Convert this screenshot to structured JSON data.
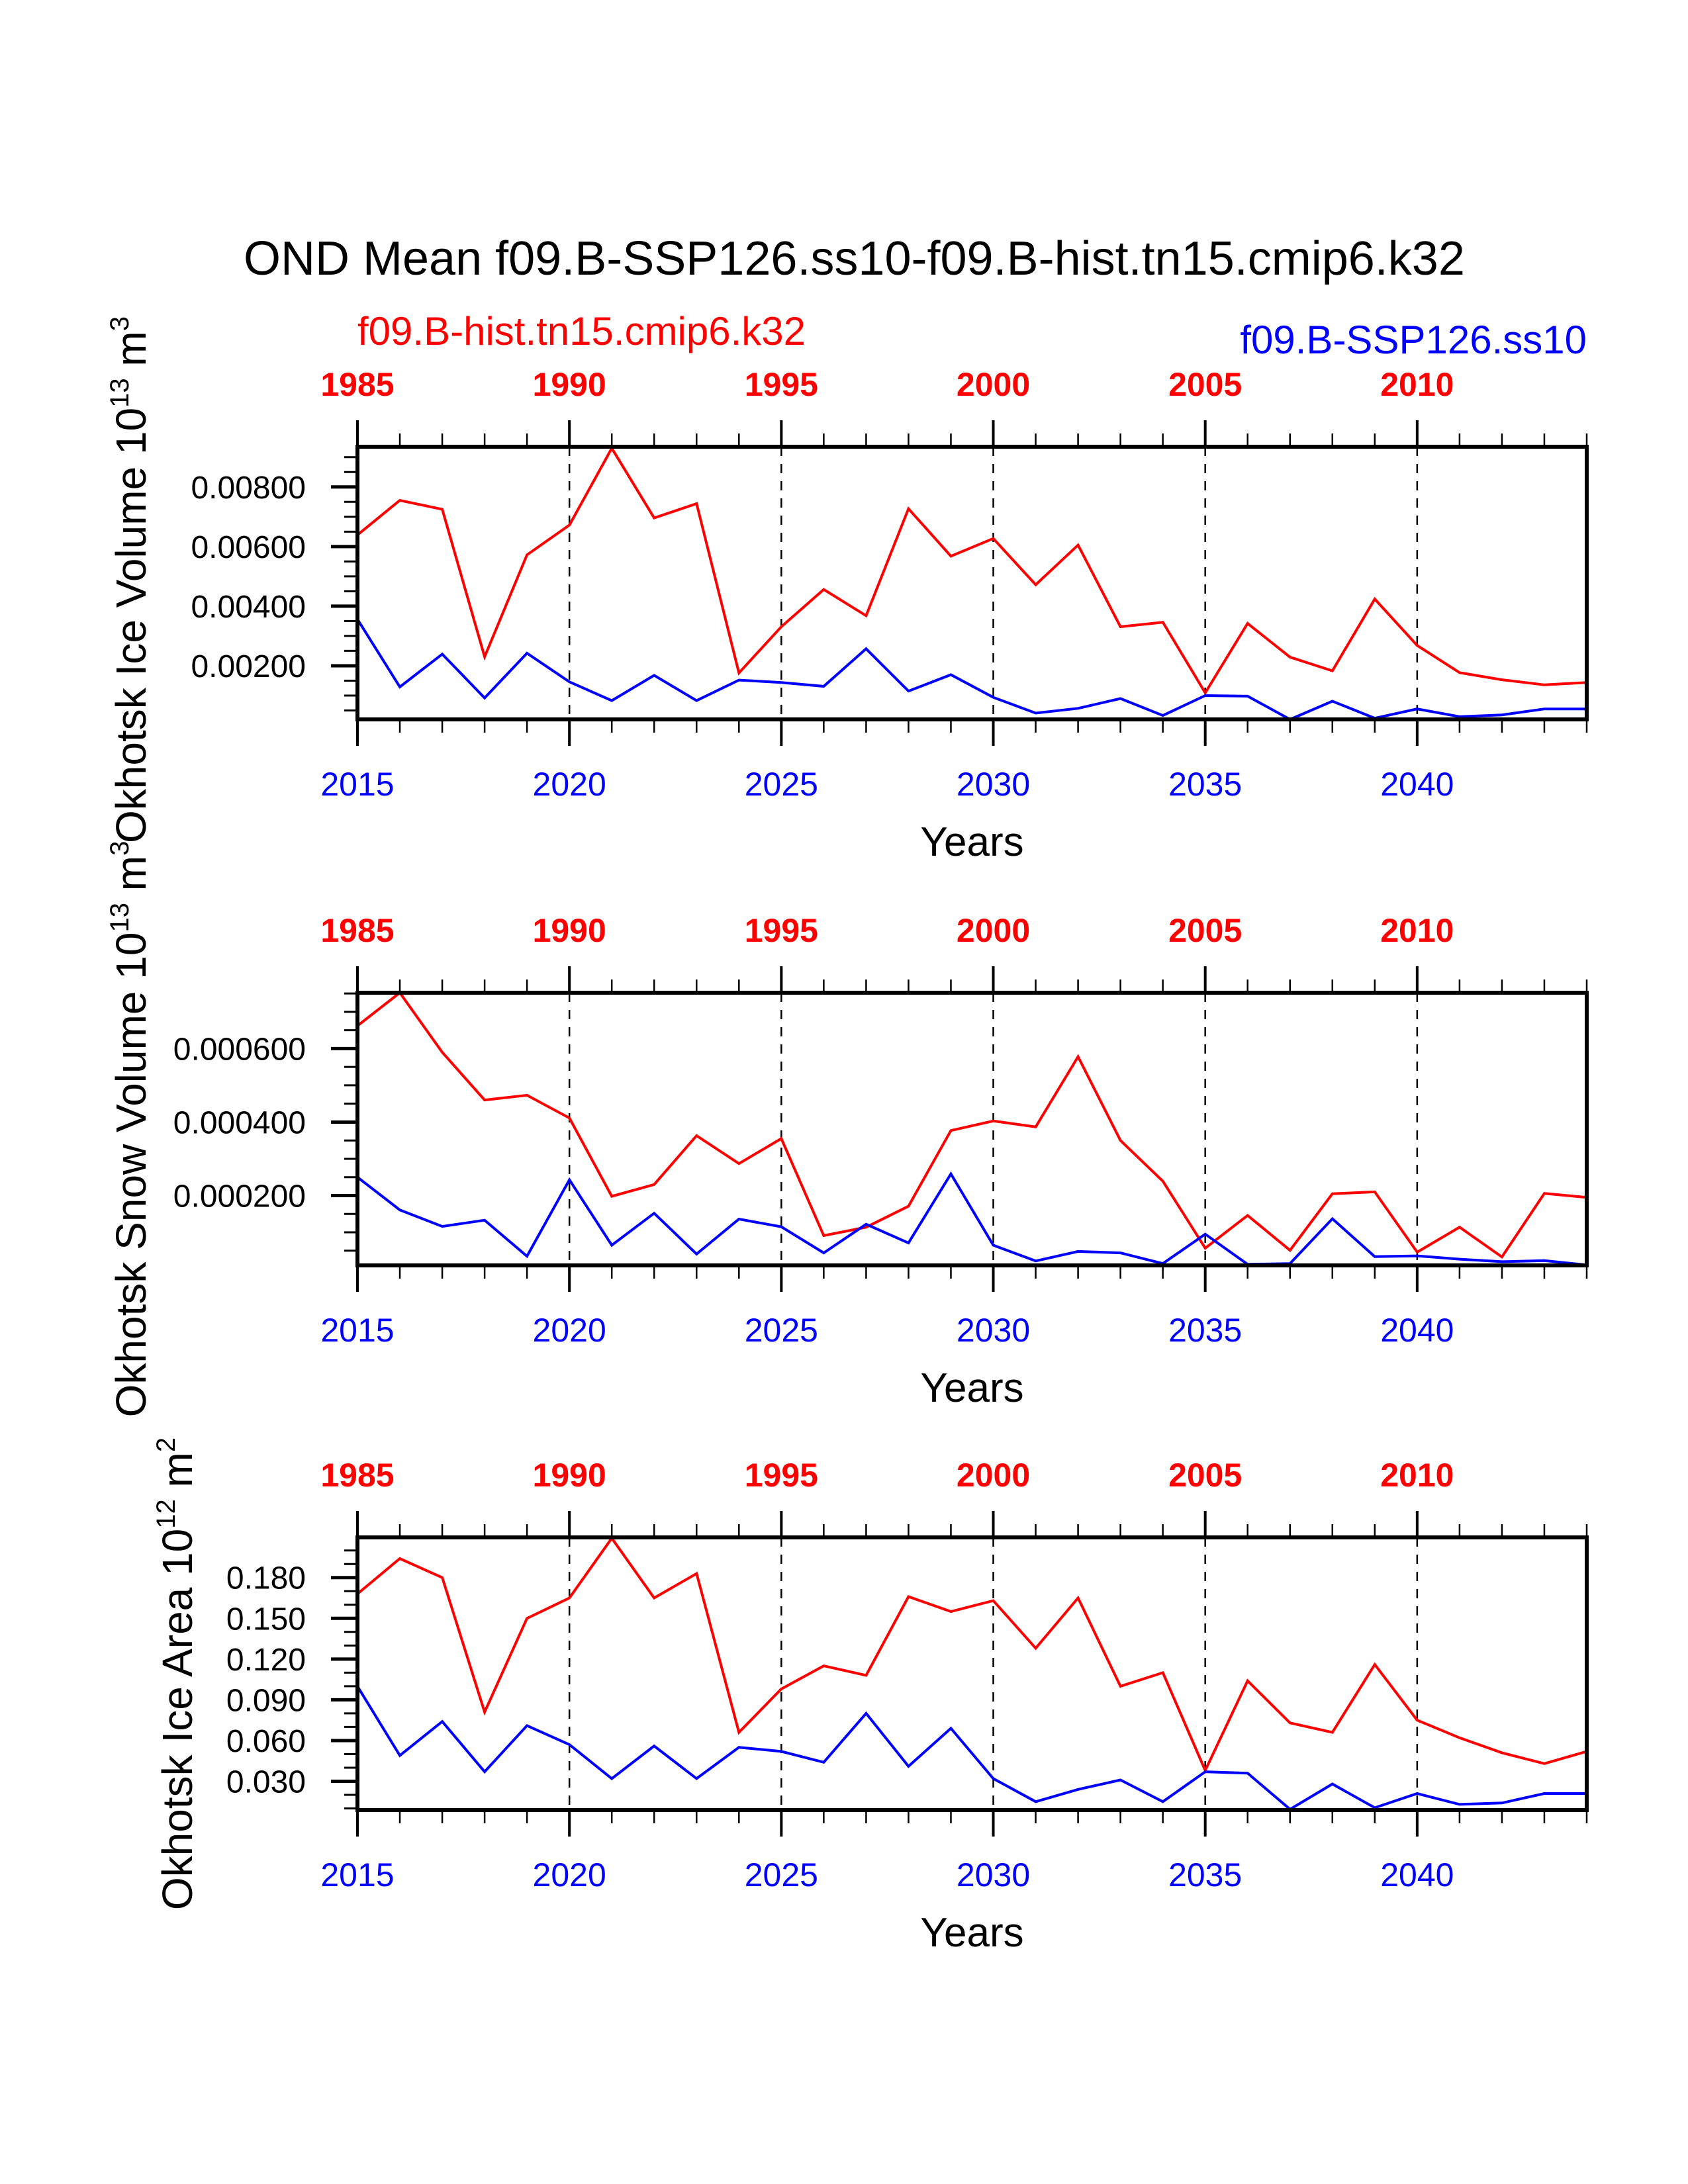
{
  "chart_data": {
    "type": "line",
    "title": "OND Mean f09.B-SSP126.ss10-f09.B-hist.tn15.cmip6.k32",
    "legend_left": {
      "text": "f09.B-hist.tn15.cmip6.k32",
      "color": "#ff0000",
      "placement": "top-left"
    },
    "legend_right": {
      "text": "f09.B-SSP126.ss10",
      "color": "#0000ff",
      "placement": "top-right"
    },
    "x_bottom": {
      "label": "Years",
      "range": [
        2015,
        2044
      ],
      "ticks": [
        2015,
        2020,
        2025,
        2030,
        2035,
        2040
      ],
      "tick_labels": [
        "2015",
        "2020",
        "2025",
        "2030",
        "2035",
        "2040"
      ],
      "color": "#0000ff"
    },
    "x_top": {
      "range": [
        1985,
        2014
      ],
      "ticks": [
        1985,
        1990,
        1995,
        2000,
        2005,
        2010
      ],
      "tick_labels": [
        "1985",
        "1990",
        "1995",
        "2000",
        "2005",
        "2010"
      ],
      "color": "#ff0000"
    },
    "grid": "vertical dashed at major ticks",
    "x": [
      2015,
      2016,
      2017,
      2018,
      2019,
      2020,
      2021,
      2022,
      2023,
      2024,
      2025,
      2026,
      2027,
      2028,
      2029,
      2030,
      2031,
      2032,
      2033,
      2034,
      2035,
      2036,
      2037,
      2038,
      2039,
      2040,
      2041,
      2042,
      2043,
      2044
    ],
    "panels": [
      {
        "ylabel": "Okhotsk Ice Volume 10",
        "ylabel_exp": "13",
        "ylabel_unit": " m",
        "ylabel_unit_exp": "3",
        "ylim": [
          0.0002,
          0.00935
        ],
        "yticks": [
          0.002,
          0.004,
          0.006,
          0.008
        ],
        "ytick_labels": [
          "0.00200",
          "0.00400",
          "0.00600",
          "0.00800"
        ],
        "yminor_step": 0.0005,
        "series": [
          {
            "name": "f09.B-hist.tn15.cmip6.k32",
            "color": "#ff0000",
            "values": [
              0.00639,
              0.00755,
              0.00725,
              0.0023,
              0.00572,
              0.00672,
              0.0093,
              0.00696,
              0.00744,
              0.00176,
              0.00331,
              0.00456,
              0.00368,
              0.00727,
              0.00568,
              0.00627,
              0.00472,
              0.00605,
              0.00331,
              0.00346,
              0.00109,
              0.00342,
              0.00229,
              0.00183,
              0.00424,
              0.00268,
              0.00177,
              0.00153,
              0.00136,
              0.00144
            ]
          },
          {
            "name": "f09.B-SSP126.ss10",
            "color": "#0000ff",
            "values": [
              0.00356,
              0.00129,
              0.00239,
              0.00092,
              0.00242,
              0.00146,
              0.00083,
              0.00168,
              0.00083,
              0.00152,
              0.00144,
              0.00131,
              0.00257,
              0.00115,
              0.0017,
              0.00094,
              0.00041,
              0.00057,
              0.0009,
              0.00033,
              0.001,
              0.00098,
              0.0002,
              0.00081,
              0.00024,
              0.00055,
              0.00029,
              0.00035,
              0.00055,
              0.00055
            ]
          }
        ]
      },
      {
        "ylabel": "Okhotsk Snow Volume 10",
        "ylabel_exp": "13",
        "ylabel_unit": " m",
        "ylabel_unit_exp": "3",
        "ylim": [
          1e-05,
          0.000752
        ],
        "yticks": [
          0.0002,
          0.0004,
          0.0006
        ],
        "ytick_labels": [
          "0.000200",
          "0.000400",
          "0.000600"
        ],
        "yminor_step": 5e-05,
        "series": [
          {
            "name": "f09.B-hist.tn15.cmip6.k32",
            "color": "#ff0000",
            "values": [
              0.000662,
              0.000752,
              0.00059,
              0.00046,
              0.000473,
              0.000411,
              0.000198,
              0.00023,
              0.000363,
              0.000287,
              0.000355,
              9.1e-05,
              0.000114,
              0.000171,
              0.000377,
              0.000403,
              0.000387,
              0.000578,
              0.00035,
              0.000239,
              5.7e-05,
              0.000146,
              5.1e-05,
              0.000205,
              0.00021,
              4.6e-05,
              0.000114,
              3.3e-05,
              0.000206,
              0.000195
            ]
          },
          {
            "name": "f09.B-SSP126.ss10",
            "color": "#0000ff",
            "values": [
              0.00025,
              0.000161,
              0.000116,
              0.000133,
              3.5e-05,
              0.000243,
              6.5e-05,
              0.000152,
              4.1e-05,
              0.000136,
              0.000115,
              4.4e-05,
              0.000122,
              7.1e-05,
              0.000259,
              6.5e-05,
              2.2e-05,
              4.8e-05,
              4.4e-05,
              1.5e-05,
              9.5e-05,
              1.3e-05,
              1.5e-05,
              0.000137,
              3.4e-05,
              3.6e-05,
              2.7e-05,
              2e-05,
              2.3e-05,
              1.1e-05
            ]
          }
        ]
      },
      {
        "ylabel": "Okhotsk Ice Area 10",
        "ylabel_exp": "12",
        "ylabel_unit": " m",
        "ylabel_unit_exp": "2",
        "ylim": [
          0.0088,
          0.2096
        ],
        "yticks": [
          0.03,
          0.06,
          0.09,
          0.12,
          0.15,
          0.18
        ],
        "ytick_labels": [
          "0.030",
          "0.060",
          "0.090",
          "0.120",
          "0.150",
          "0.180"
        ],
        "yminor_step": 0.01,
        "series": [
          {
            "name": "f09.B-hist.tn15.cmip6.k32",
            "color": "#ff0000",
            "values": [
              0.168,
              0.194,
              0.18,
              0.081,
              0.15,
              0.165,
              0.209,
              0.165,
              0.183,
              0.066,
              0.098,
              0.115,
              0.108,
              0.166,
              0.155,
              0.163,
              0.128,
              0.165,
              0.1,
              0.11,
              0.038,
              0.104,
              0.073,
              0.066,
              0.116,
              0.075,
              0.062,
              0.051,
              0.043,
              0.052
            ]
          },
          {
            "name": "f09.B-SSP126.ss10",
            "color": "#0000ff",
            "values": [
              0.1,
              0.049,
              0.074,
              0.037,
              0.071,
              0.057,
              0.032,
              0.056,
              0.032,
              0.055,
              0.052,
              0.044,
              0.08,
              0.041,
              0.069,
              0.032,
              0.015,
              0.024,
              0.031,
              0.015,
              0.037,
              0.036,
              0.0094,
              0.028,
              0.0105,
              0.021,
              0.013,
              0.014,
              0.021,
              0.021
            ]
          }
        ]
      }
    ]
  }
}
